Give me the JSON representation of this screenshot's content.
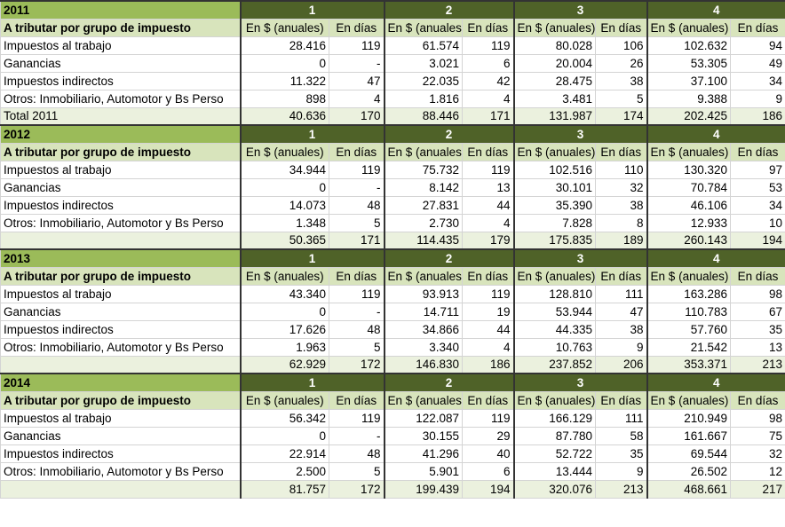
{
  "blocks": [
    {
      "year": "2011",
      "groups": [
        "1",
        "2",
        "3",
        "4"
      ],
      "header_label": "A tributar por grupo de impuesto",
      "subheaders": [
        "En $ (anuales)",
        "En días",
        "En $ (anuales)",
        "En días",
        "En $ (anuales)",
        "En días",
        "En $ (anuales)",
        "En días"
      ],
      "rows": [
        {
          "label": "Impuestos al trabajo",
          "cells": [
            "28.416",
            "119",
            "61.574",
            "119",
            "80.028",
            "106",
            "102.632",
            "94"
          ]
        },
        {
          "label": "Ganancias",
          "cells": [
            "0",
            "-",
            "3.021",
            "6",
            "20.004",
            "26",
            "53.305",
            "49"
          ]
        },
        {
          "label": "Impuestos indirectos",
          "cells": [
            "11.322",
            "47",
            "22.035",
            "42",
            "28.475",
            "38",
            "37.100",
            "34"
          ]
        },
        {
          "label": "Otros: Inmobiliario, Automotor y Bs Perso",
          "cells": [
            "898",
            "4",
            "1.816",
            "4",
            "3.481",
            "5",
            "9.388",
            "9"
          ]
        }
      ],
      "total": {
        "label": "Total 2011",
        "cells": [
          "40.636",
          "170",
          "88.446",
          "171",
          "131.987",
          "174",
          "202.425",
          "186"
        ]
      }
    },
    {
      "year": "2012",
      "groups": [
        "1",
        "2",
        "3",
        "4"
      ],
      "header_label": "A tributar por grupo de impuesto",
      "subheaders": [
        "En $ (anuales)",
        "En días",
        "En $ (anuales)",
        "En días",
        "En $ (anuales)",
        "En días",
        "En $ (anuales)",
        "En días"
      ],
      "rows": [
        {
          "label": "Impuestos al trabajo",
          "cells": [
            "34.944",
            "119",
            "75.732",
            "119",
            "102.516",
            "110",
            "130.320",
            "97"
          ]
        },
        {
          "label": "Ganancias",
          "cells": [
            "0",
            "-",
            "8.142",
            "13",
            "30.101",
            "32",
            "70.784",
            "53"
          ]
        },
        {
          "label": "Impuestos indirectos",
          "cells": [
            "14.073",
            "48",
            "27.831",
            "44",
            "35.390",
            "38",
            "46.106",
            "34"
          ]
        },
        {
          "label": "Otros: Inmobiliario, Automotor y Bs Perso",
          "cells": [
            "1.348",
            "5",
            "2.730",
            "4",
            "7.828",
            "8",
            "12.933",
            "10"
          ]
        }
      ],
      "total": {
        "cells": [
          "50.365",
          "171",
          "114.435",
          "179",
          "175.835",
          "189",
          "260.143",
          "194"
        ]
      }
    },
    {
      "year": "2013",
      "groups": [
        "1",
        "2",
        "3",
        "4"
      ],
      "header_label": "A tributar por grupo de impuesto",
      "subheaders": [
        "En $ (anuales)",
        "En días",
        "En $ (anuales)",
        "En días",
        "En $ (anuales)",
        "En días",
        "En $ (anuales)",
        "En días"
      ],
      "rows": [
        {
          "label": "Impuestos al trabajo",
          "cells": [
            "43.340",
            "119",
            "93.913",
            "119",
            "128.810",
            "111",
            "163.286",
            "98"
          ]
        },
        {
          "label": "Ganancias",
          "cells": [
            "0",
            "-",
            "14.711",
            "19",
            "53.944",
            "47",
            "110.783",
            "67"
          ]
        },
        {
          "label": "Impuestos indirectos",
          "cells": [
            "17.626",
            "48",
            "34.866",
            "44",
            "44.335",
            "38",
            "57.760",
            "35"
          ]
        },
        {
          "label": "Otros: Inmobiliario, Automotor y Bs Perso",
          "cells": [
            "1.963",
            "5",
            "3.340",
            "4",
            "10.763",
            "9",
            "21.542",
            "13"
          ]
        }
      ],
      "total": {
        "cells": [
          "62.929",
          "172",
          "146.830",
          "186",
          "237.852",
          "206",
          "353.371",
          "213"
        ]
      }
    },
    {
      "year": "2014",
      "groups": [
        "1",
        "2",
        "3",
        "4"
      ],
      "header_label": "A tributar por grupo de impuesto",
      "subheaders": [
        "En $ (anuales)",
        "En días",
        "En $ (anuales)",
        "En días",
        "En $ (anuales)",
        "En días",
        "En $ (anuales)",
        "En días"
      ],
      "rows": [
        {
          "label": "Impuestos al trabajo",
          "cells": [
            "56.342",
            "119",
            "122.087",
            "119",
            "166.129",
            "111",
            "210.949",
            "98"
          ]
        },
        {
          "label": "Ganancias",
          "cells": [
            "0",
            "-",
            "30.155",
            "29",
            "87.780",
            "58",
            "161.667",
            "75"
          ]
        },
        {
          "label": "Impuestos indirectos",
          "cells": [
            "22.914",
            "48",
            "41.296",
            "40",
            "52.722",
            "35",
            "69.544",
            "32"
          ]
        },
        {
          "label": "Otros: Inmobiliario, Automotor y Bs Perso",
          "cells": [
            "2.500",
            "5",
            "5.901",
            "6",
            "13.444",
            "9",
            "26.502",
            "12"
          ]
        }
      ],
      "total": {
        "cells": [
          "81.757",
          "172",
          "199.439",
          "194",
          "320.076",
          "213",
          "468.661",
          "217"
        ]
      }
    }
  ]
}
